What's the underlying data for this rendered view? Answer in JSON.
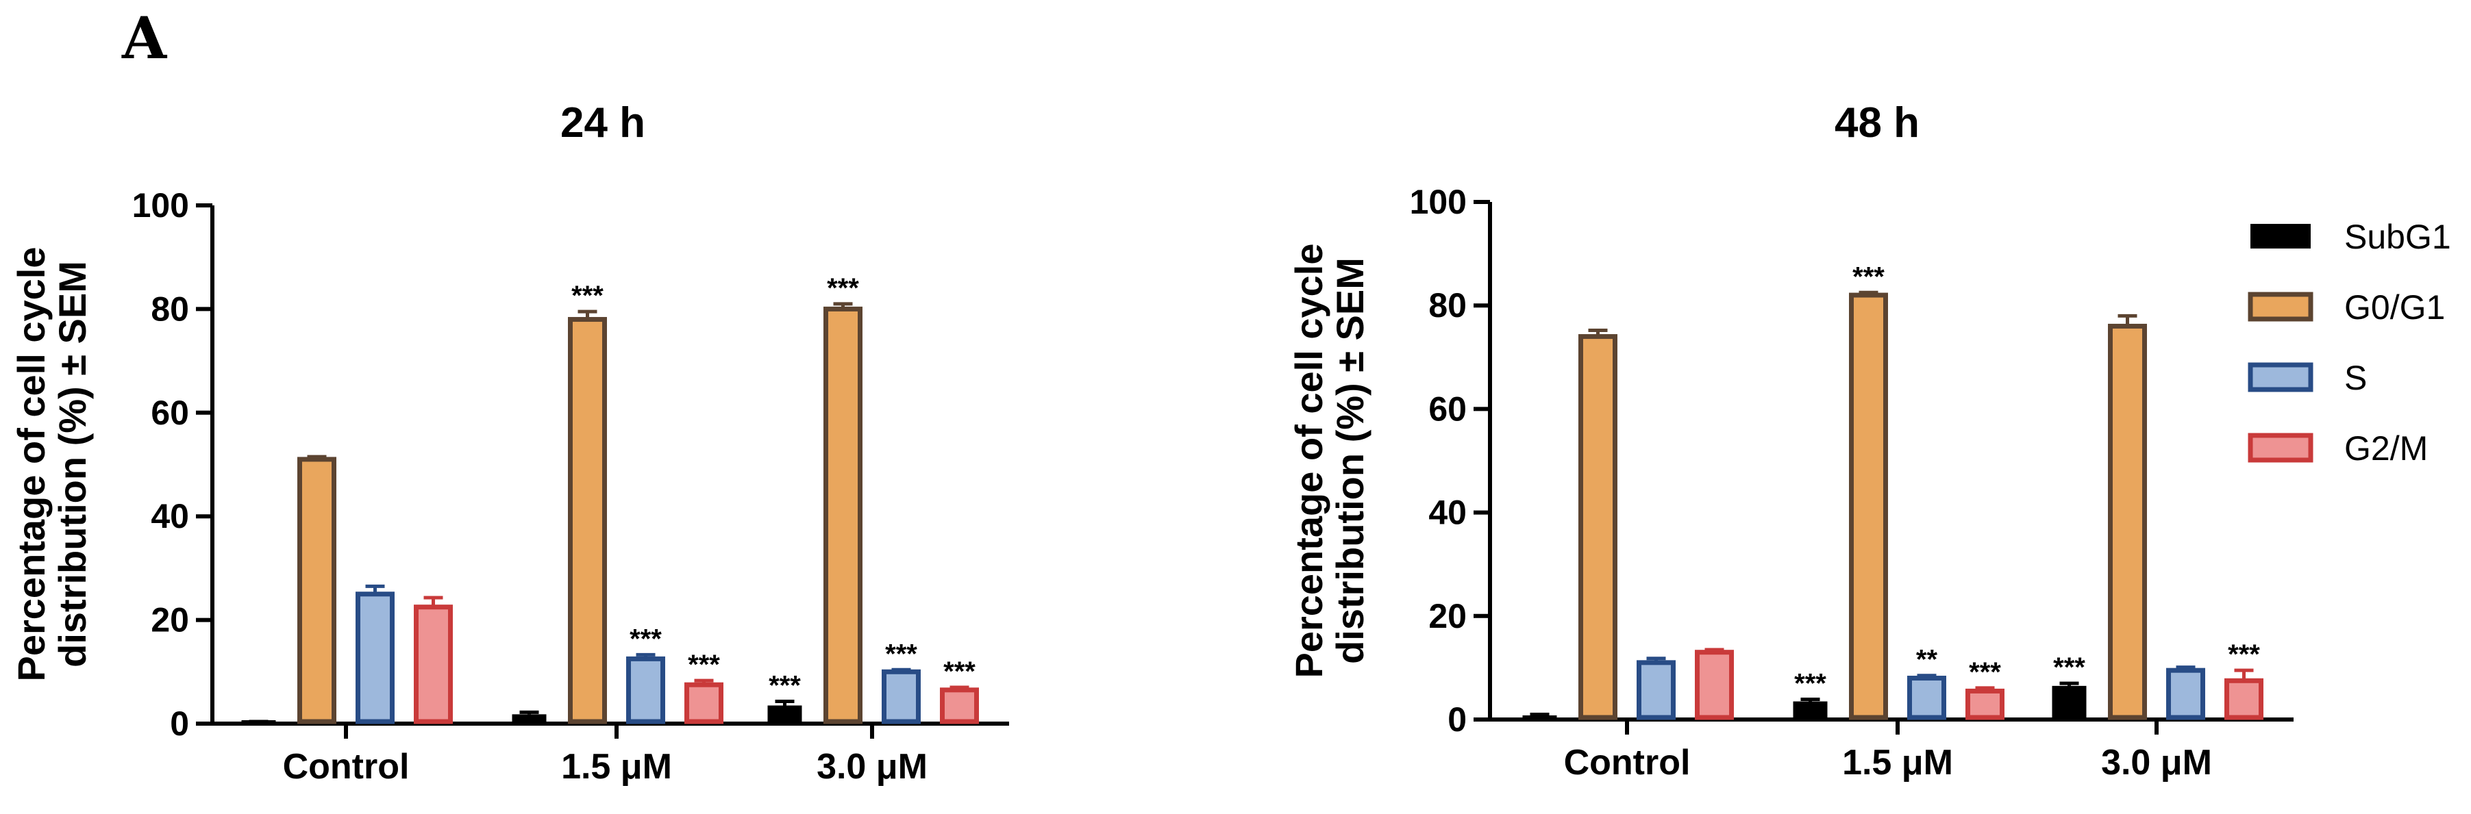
{
  "panel_label": "A",
  "legend": [
    {
      "name": "SubG1",
      "fill": "#000000",
      "stroke": "#000000"
    },
    {
      "name": "G0/G1",
      "fill": "#E9A65D",
      "stroke": "#5C4431"
    },
    {
      "name": "S",
      "fill": "#9DB8DC",
      "stroke": "#284C86"
    },
    {
      "name": "G2/M",
      "fill": "#EE9393",
      "stroke": "#C93A3A"
    }
  ],
  "chart_data": [
    {
      "type": "bar",
      "title": "24 h",
      "ylabel": [
        "Percentage of cell cycle",
        "distribution (%) ± SEM"
      ],
      "xlabel": "",
      "ylim": [
        0,
        100
      ],
      "yticks": [
        "0",
        "20",
        "40",
        "60",
        "80",
        "100"
      ],
      "categories": [
        "Control",
        "1.5 μM",
        "3.0 μM"
      ],
      "series": [
        {
          "name": "SubG1",
          "values": [
            0.3,
            1.8,
            3.5
          ],
          "errors": [
            0.1,
            0.4,
            0.8
          ],
          "sig": [
            "",
            "",
            "***"
          ]
        },
        {
          "name": "G0/G1",
          "values": [
            51,
            78,
            80
          ],
          "errors": [
            0.5,
            1.5,
            1.0
          ],
          "sig": [
            "",
            "***",
            "***"
          ]
        },
        {
          "name": "S",
          "values": [
            25,
            12.5,
            10
          ],
          "errors": [
            1.5,
            0.8,
            0.4
          ],
          "sig": [
            "",
            "***",
            "***"
          ]
        },
        {
          "name": "G2/M",
          "values": [
            22.5,
            7.5,
            6.5
          ],
          "errors": [
            1.8,
            0.8,
            0.5
          ],
          "sig": [
            "",
            "***",
            "***"
          ]
        }
      ]
    },
    {
      "type": "bar",
      "title": "48 h",
      "ylabel": [
        "Percentage of cell cycle",
        "distribution (%) ± SEM"
      ],
      "xlabel": "",
      "ylim": [
        0,
        100
      ],
      "yticks": [
        "0",
        "20",
        "40",
        "60",
        "80",
        "100"
      ],
      "categories": [
        "Control",
        "1.5 μM",
        "3.0 μM"
      ],
      "series": [
        {
          "name": "SubG1",
          "values": [
            0.8,
            3.5,
            6.5
          ],
          "errors": [
            0.2,
            0.4,
            0.5
          ],
          "sig": [
            "",
            "***",
            "***"
          ]
        },
        {
          "name": "G0/G1",
          "values": [
            74,
            82,
            76
          ],
          "errors": [
            1.2,
            0.5,
            2.0
          ],
          "sig": [
            "",
            "***",
            ""
          ]
        },
        {
          "name": "S",
          "values": [
            11,
            8,
            9.5
          ],
          "errors": [
            0.8,
            0.5,
            0.6
          ],
          "sig": [
            "",
            "**",
            ""
          ]
        },
        {
          "name": "G2/M",
          "values": [
            13,
            5.5,
            7.5
          ],
          "errors": [
            0.5,
            0.6,
            2.0
          ],
          "sig": [
            "",
            "***",
            "***"
          ]
        }
      ]
    }
  ]
}
